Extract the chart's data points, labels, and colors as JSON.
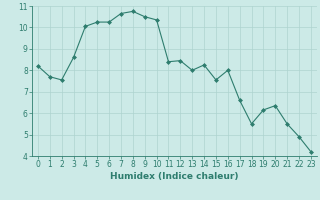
{
  "x": [
    0,
    1,
    2,
    3,
    4,
    5,
    6,
    7,
    8,
    9,
    10,
    11,
    12,
    13,
    14,
    15,
    16,
    17,
    18,
    19,
    20,
    21,
    22,
    23
  ],
  "y": [
    8.2,
    7.7,
    7.55,
    8.6,
    10.05,
    10.25,
    10.25,
    10.65,
    10.75,
    10.5,
    10.35,
    8.4,
    8.45,
    8.0,
    8.25,
    7.55,
    8.0,
    6.6,
    5.5,
    6.15,
    6.35,
    5.5,
    4.9,
    4.2
  ],
  "line_color": "#2e7d6e",
  "marker": "D",
  "marker_size": 2.0,
  "bg_color": "#cceae7",
  "grid_color": "#aed4d0",
  "xlabel": "Humidex (Indice chaleur)",
  "xlabel_color": "#2e7d6e",
  "xlim": [
    -0.5,
    23.5
  ],
  "ylim": [
    4,
    11
  ],
  "yticks": [
    4,
    5,
    6,
    7,
    8,
    9,
    10,
    11
  ],
  "xticks": [
    0,
    1,
    2,
    3,
    4,
    5,
    6,
    7,
    8,
    9,
    10,
    11,
    12,
    13,
    14,
    15,
    16,
    17,
    18,
    19,
    20,
    21,
    22,
    23
  ],
  "tick_color": "#2e7d6e",
  "spine_color": "#2e7d6e",
  "tick_labelsize": 5.5,
  "xlabel_fontsize": 6.5,
  "linewidth": 0.8
}
